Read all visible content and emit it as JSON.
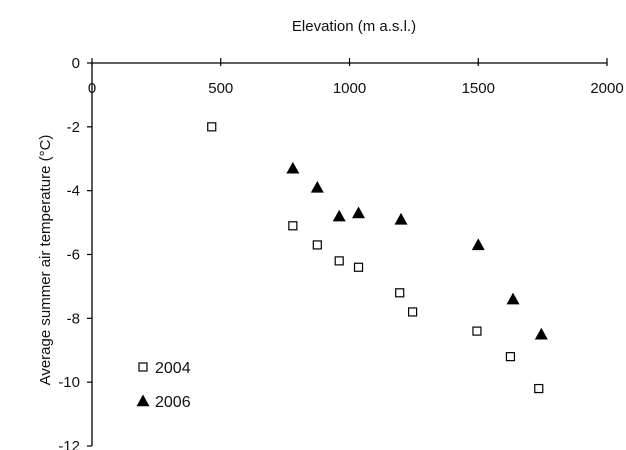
{
  "chart_data": {
    "type": "scatter",
    "xlabel": "Elevation (m a.s.l.)",
    "ylabel": "Average summer air temperature (°C)",
    "xlim": [
      0,
      2000
    ],
    "ylim": [
      -12,
      0
    ],
    "x_ticks": [
      "0",
      "500",
      "1000",
      "1500",
      "2000"
    ],
    "y_ticks": [
      "0",
      "-2",
      "-4",
      "-6",
      "-8",
      "-10",
      "-12"
    ],
    "x_axis_position": "top",
    "grid": false,
    "legend_position": "bottom-left",
    "series": [
      {
        "name": "2004",
        "marker": "open-square",
        "color": "#000000",
        "points": [
          {
            "x": 465,
            "y": -2.0
          },
          {
            "x": 780,
            "y": -5.1
          },
          {
            "x": 875,
            "y": -5.7
          },
          {
            "x": 960,
            "y": -6.2
          },
          {
            "x": 1035,
            "y": -6.4
          },
          {
            "x": 1195,
            "y": -7.2
          },
          {
            "x": 1245,
            "y": -7.8
          },
          {
            "x": 1495,
            "y": -8.4
          },
          {
            "x": 1625,
            "y": -9.2
          },
          {
            "x": 1735,
            "y": -10.2
          }
        ]
      },
      {
        "name": "2006",
        "marker": "filled-triangle",
        "color": "#000000",
        "points": [
          {
            "x": 780,
            "y": -3.3
          },
          {
            "x": 875,
            "y": -3.9
          },
          {
            "x": 960,
            "y": -4.8
          },
          {
            "x": 1035,
            "y": -4.7
          },
          {
            "x": 1200,
            "y": -4.9
          },
          {
            "x": 1500,
            "y": -5.7
          },
          {
            "x": 1635,
            "y": -7.4
          },
          {
            "x": 1745,
            "y": -8.5
          }
        ]
      }
    ]
  }
}
